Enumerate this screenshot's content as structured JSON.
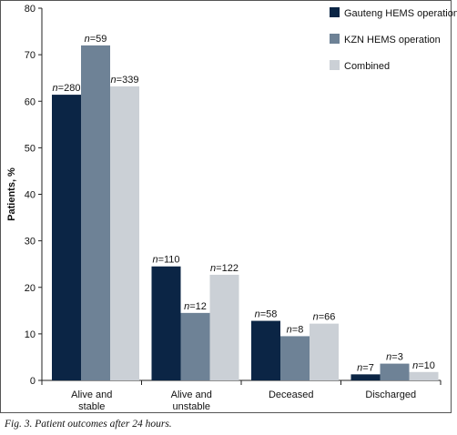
{
  "chart_data": {
    "type": "bar",
    "title": "",
    "xlabel": "",
    "ylabel": "Patients, %",
    "ylim": [
      0,
      80
    ],
    "yticks": [
      0,
      10,
      20,
      30,
      40,
      50,
      60,
      70,
      80
    ],
    "grid": false,
    "legend_position": "top-right",
    "categories": [
      [
        "Alive and",
        "stable"
      ],
      [
        "Alive and",
        "unstable"
      ],
      [
        "Deceased"
      ],
      [
        "Discharged"
      ]
    ],
    "series": [
      {
        "name": "Gauteng HEMS operation",
        "color": "#0b2545",
        "values": [
          61.4,
          24.5,
          12.8,
          1.3
        ],
        "labels": [
          "n=280",
          "n=110",
          "n=58",
          "n=7"
        ]
      },
      {
        "name": "KZN HEMS operation",
        "color": "#6e8296",
        "values": [
          72.0,
          14.5,
          9.5,
          3.6
        ],
        "labels": [
          "n=59",
          "n=12",
          "n=8",
          "n=3"
        ]
      },
      {
        "name": "Combined",
        "color": "#cbd0d6",
        "values": [
          63.2,
          22.7,
          12.2,
          1.8
        ],
        "labels": [
          "n=339",
          "n=122",
          "n=66",
          "n=10"
        ]
      }
    ]
  },
  "caption": "Fig. 3. Patient outcomes after 24 hours."
}
